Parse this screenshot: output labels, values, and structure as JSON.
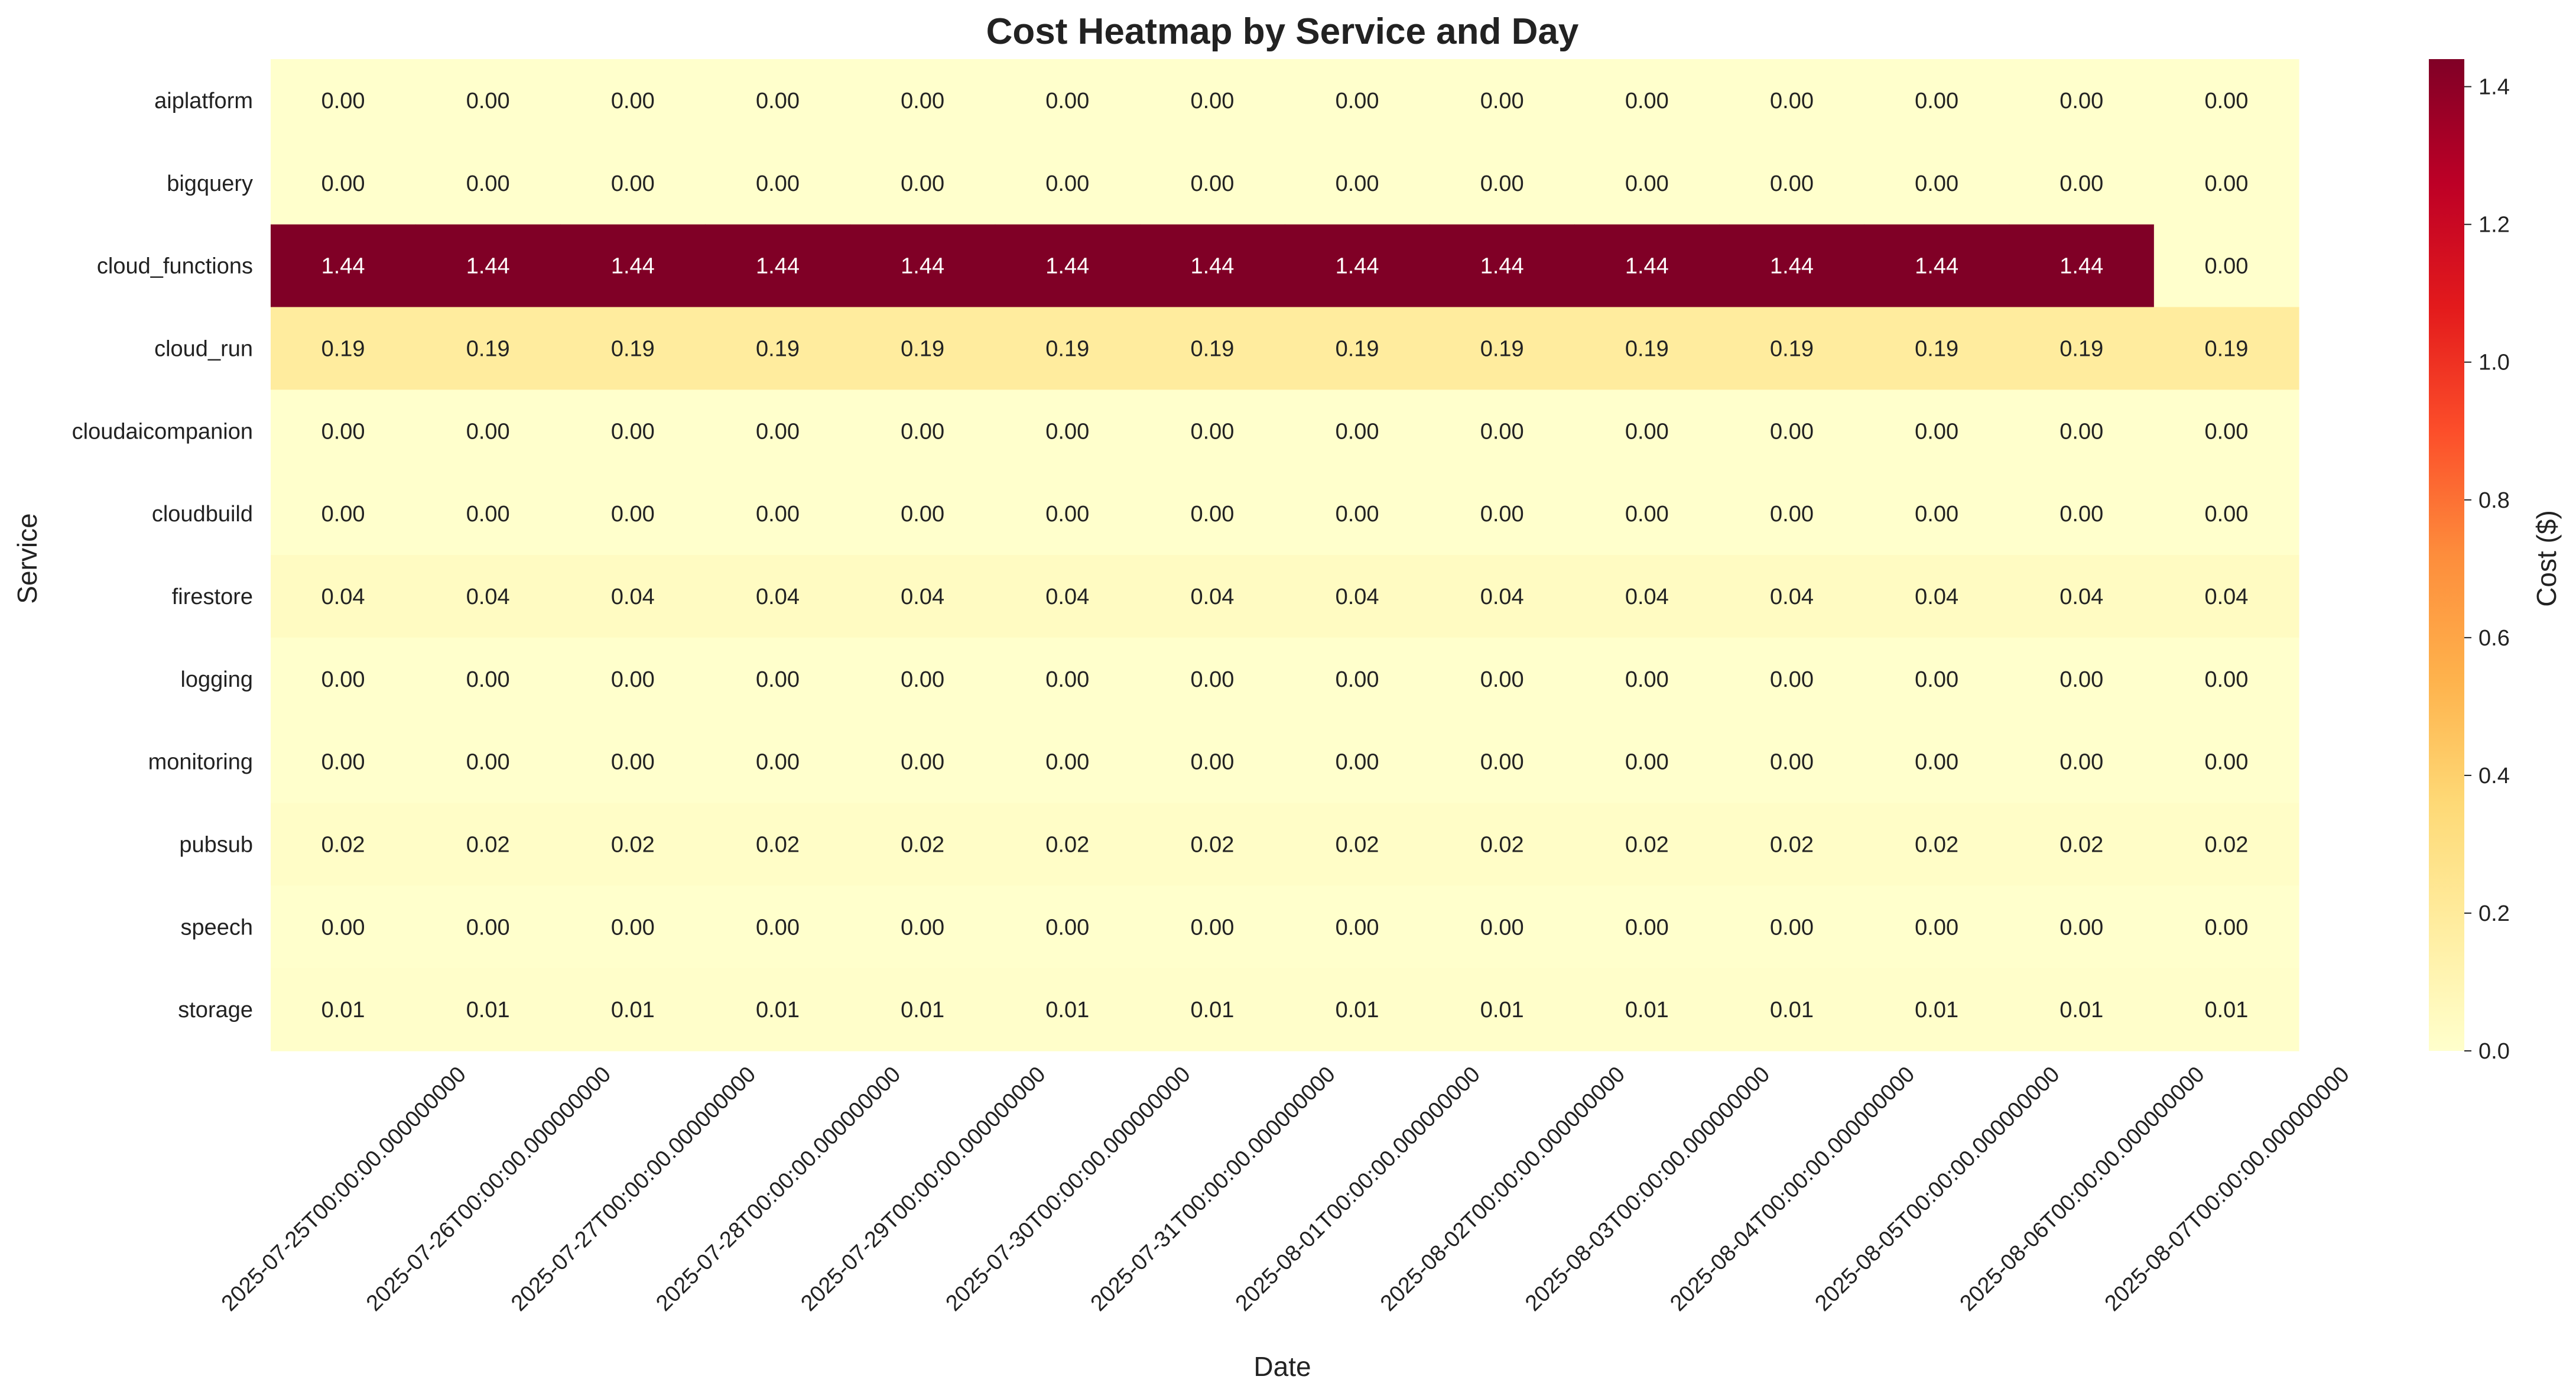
{
  "chart_data": {
    "type": "heatmap",
    "title": "Cost Heatmap by Service and Day",
    "xlabel": "Date",
    "ylabel": "Service",
    "colorbar_label": "Cost ($)",
    "colormap": "YlOrRd",
    "color_range": [
      0,
      1.44
    ],
    "colorbar_ticks": [
      "0.0",
      "0.2",
      "0.4",
      "0.6",
      "0.8",
      "1.0",
      "1.2",
      "1.4"
    ],
    "colorbar_tick_values": [
      0,
      0.2,
      0.4,
      0.6,
      0.8,
      1.0,
      1.2,
      1.4
    ],
    "x_categories": [
      "2025-07-25T00:00:00.000000000",
      "2025-07-26T00:00:00.000000000",
      "2025-07-27T00:00:00.000000000",
      "2025-07-28T00:00:00.000000000",
      "2025-07-29T00:00:00.000000000",
      "2025-07-30T00:00:00.000000000",
      "2025-07-31T00:00:00.000000000",
      "2025-08-01T00:00:00.000000000",
      "2025-08-02T00:00:00.000000000",
      "2025-08-03T00:00:00.000000000",
      "2025-08-04T00:00:00.000000000",
      "2025-08-05T00:00:00.000000000",
      "2025-08-06T00:00:00.000000000",
      "2025-08-07T00:00:00.000000000"
    ],
    "y_categories": [
      "aiplatform",
      "bigquery",
      "cloud_functions",
      "cloud_run",
      "cloudaicompanion",
      "cloudbuild",
      "firestore",
      "logging",
      "monitoring",
      "pubsub",
      "speech",
      "storage"
    ],
    "values": [
      [
        0,
        0,
        0,
        0,
        0,
        0,
        0,
        0,
        0,
        0,
        0,
        0,
        0,
        0
      ],
      [
        0,
        0,
        0,
        0,
        0,
        0,
        0,
        0,
        0,
        0,
        0,
        0,
        0,
        0
      ],
      [
        1.44,
        1.44,
        1.44,
        1.44,
        1.44,
        1.44,
        1.44,
        1.44,
        1.44,
        1.44,
        1.44,
        1.44,
        1.44,
        0
      ],
      [
        0.19,
        0.19,
        0.19,
        0.19,
        0.19,
        0.19,
        0.19,
        0.19,
        0.19,
        0.19,
        0.19,
        0.19,
        0.19,
        0.19
      ],
      [
        0,
        0,
        0,
        0,
        0,
        0,
        0,
        0,
        0,
        0,
        0,
        0,
        0,
        0
      ],
      [
        0,
        0,
        0,
        0,
        0,
        0,
        0,
        0,
        0,
        0,
        0,
        0,
        0,
        0
      ],
      [
        0.04,
        0.04,
        0.04,
        0.04,
        0.04,
        0.04,
        0.04,
        0.04,
        0.04,
        0.04,
        0.04,
        0.04,
        0.04,
        0.04
      ],
      [
        0,
        0,
        0,
        0,
        0,
        0,
        0,
        0,
        0,
        0,
        0,
        0,
        0,
        0
      ],
      [
        0,
        0,
        0,
        0,
        0,
        0,
        0,
        0,
        0,
        0,
        0,
        0,
        0,
        0
      ],
      [
        0.02,
        0.02,
        0.02,
        0.02,
        0.02,
        0.02,
        0.02,
        0.02,
        0.02,
        0.02,
        0.02,
        0.02,
        0.02,
        0.02
      ],
      [
        0,
        0,
        0,
        0,
        0,
        0,
        0,
        0,
        0,
        0,
        0,
        0,
        0,
        0
      ],
      [
        0.01,
        0.01,
        0.01,
        0.01,
        0.01,
        0.01,
        0.01,
        0.01,
        0.01,
        0.01,
        0.01,
        0.01,
        0.01,
        0.01
      ]
    ],
    "annotations_format": "0.00",
    "annotation_color_dark": "#ffffff",
    "annotation_color_light": "#222222"
  }
}
